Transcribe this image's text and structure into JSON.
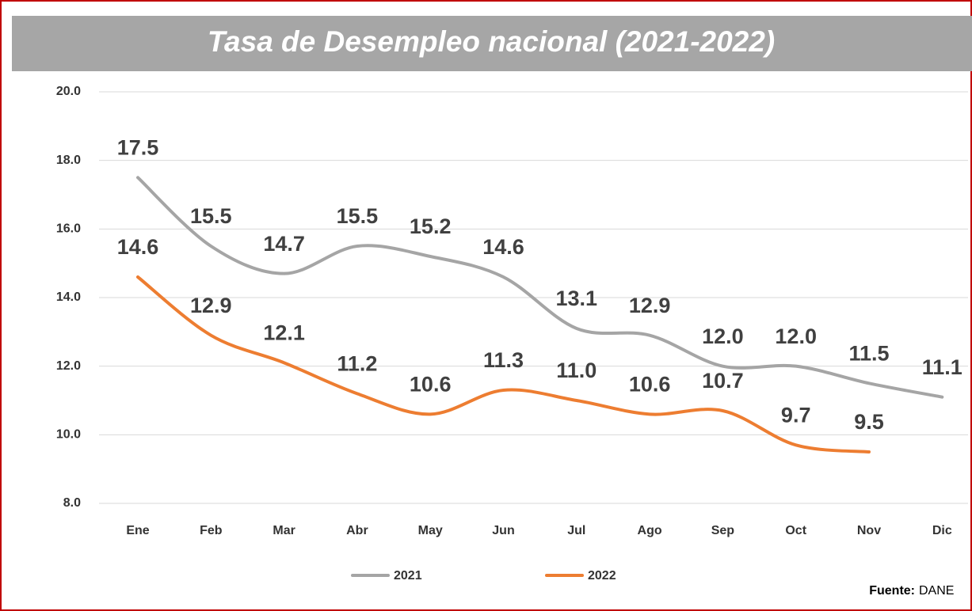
{
  "chart_data": {
    "type": "line",
    "title": "Tasa de Desempleo nacional (2021-2022)",
    "categories": [
      "Ene",
      "Feb",
      "Mar",
      "Abr",
      "May",
      "Jun",
      "Jul",
      "Ago",
      "Sep",
      "Oct",
      "Nov",
      "Dic"
    ],
    "series": [
      {
        "name": "2021",
        "color": "#a5a5a5",
        "values": [
          17.5,
          15.5,
          14.7,
          15.5,
          15.2,
          14.6,
          13.1,
          12.9,
          12.0,
          12.0,
          11.5,
          11.1
        ],
        "value_labels": [
          "17.5",
          "15.5",
          "14.7",
          "15.5",
          "15.2",
          "14.6",
          "13.1",
          "12.9",
          "12.0",
          "12.0",
          "11.5",
          "11.1"
        ]
      },
      {
        "name": "2022",
        "color": "#ed7d31",
        "values": [
          14.6,
          12.9,
          12.1,
          11.2,
          10.6,
          11.3,
          11.0,
          10.6,
          10.7,
          9.7,
          9.5,
          null
        ],
        "value_labels": [
          "14.6",
          "12.9",
          "12.1",
          "11.2",
          "10.6",
          "11.3",
          "11.0",
          "10.6",
          "10.7",
          "9.7",
          "9.5",
          null
        ]
      }
    ],
    "ylim": [
      8,
      20
    ],
    "yticks": [
      {
        "value": 8,
        "label": "8.0"
      },
      {
        "value": 10,
        "label": "10.0"
      },
      {
        "value": 12,
        "label": "12.0"
      },
      {
        "value": 14,
        "label": "14.0"
      },
      {
        "value": 16,
        "label": "16.0"
      },
      {
        "value": 18,
        "label": "18.0"
      },
      {
        "value": 20,
        "label": "20.0"
      }
    ],
    "grid": true,
    "legend": "bottom",
    "source_label": "Fuente:",
    "source": "DANE"
  }
}
